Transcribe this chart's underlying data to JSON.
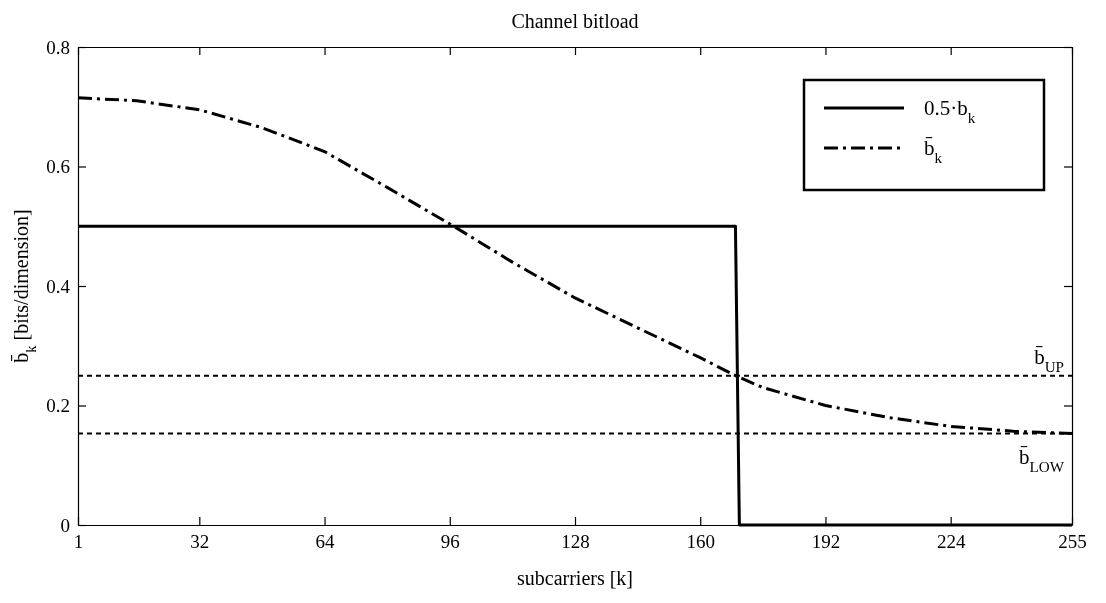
{
  "chart_data": {
    "type": "line",
    "title": "Channel bitload",
    "xlabel": "subcarriers [k]",
    "ylabel": "b̄$_{k}$  [bits/dimension]",
    "xlim": [
      1,
      255
    ],
    "xticks": [
      1,
      32,
      64,
      96,
      128,
      160,
      192,
      224,
      255
    ],
    "ylim": [
      0,
      0.8
    ],
    "yticks": [
      0,
      0.2,
      0.4,
      0.6,
      0.8
    ],
    "grid": false,
    "legend": "top right",
    "marker": "none",
    "series": [
      {
        "name": "0.5·b$_{k}$",
        "color": "#000000",
        "line_style": "solid",
        "x": [
          1,
          169,
          170,
          255
        ],
        "values": [
          0.5,
          0.5,
          0,
          0
        ]
      },
      {
        "name": "b̄$_{k}$",
        "color": "#000000",
        "line_style": "dashed",
        "x": [
          1,
          16,
          32,
          48,
          64,
          80,
          97,
          112,
          128,
          144,
          160,
          169,
          176,
          192,
          208,
          224,
          240,
          255
        ],
        "values": [
          0.715,
          0.71,
          0.695,
          0.665,
          0.625,
          0.565,
          0.5,
          0.44,
          0.38,
          0.33,
          0.28,
          0.25,
          0.23,
          0.2,
          0.18,
          0.165,
          0.157,
          0.153
        ]
      }
    ],
    "ref_lines": [
      {
        "axis": "y",
        "value": 0.25,
        "label": "b̄$_{UP}$",
        "color": "#000000",
        "line_style": "dashed"
      },
      {
        "axis": "y",
        "value": 0.153,
        "label": "b̄$_{LOW}$",
        "color": "#000000",
        "line_style": "dashed"
      }
    ]
  }
}
